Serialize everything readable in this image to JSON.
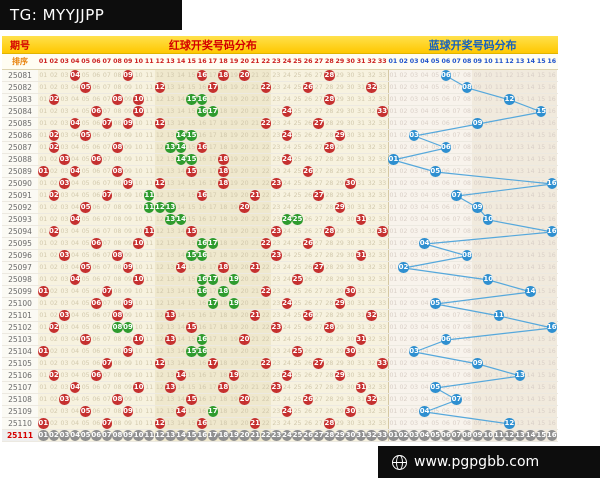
{
  "header": {
    "tg": "TG: MYYJJPP",
    "period_label": "期号",
    "sort_label": "排序",
    "red_title": "红球开奖号码分布",
    "blue_title": "蓝球开奖号码分布"
  },
  "footer": {
    "site": "www.pgpgbb.com"
  },
  "colors": {
    "red_ball": "#c5302f",
    "green_ball": "#2e9b2e",
    "blue_ball": "#2e8fd0",
    "blue_line": "#56a8dc",
    "pending_ball": "#8f8f8f",
    "header_yellow": "#ffd800",
    "red_text": "#d40000",
    "blue_text": "#1661bd"
  },
  "chart_data": {
    "type": "scatter",
    "title": "红球开奖号码分布 / 蓝球开奖号码分布",
    "red_columns_range": [
      1,
      33
    ],
    "blue_columns_range": [
      1,
      16
    ],
    "legend": [
      "red-ball",
      "green-ball",
      "blue-ball"
    ],
    "rows": [
      {
        "period": "25081",
        "reds": [
          4,
          9,
          16,
          18,
          20,
          28
        ],
        "greens": [],
        "blue": 6
      },
      {
        "period": "25082",
        "reds": [
          5,
          12,
          17,
          22,
          26,
          32
        ],
        "greens": [],
        "blue": 8
      },
      {
        "period": "25083",
        "reds": [
          2,
          8,
          10,
          15,
          16,
          28
        ],
        "greens": [
          15,
          16
        ],
        "blue": 12
      },
      {
        "period": "25084",
        "reds": [
          6,
          10,
          16,
          17,
          24,
          33
        ],
        "greens": [
          16,
          17
        ],
        "blue": 15
      },
      {
        "period": "25085",
        "reds": [
          4,
          7,
          9,
          12,
          22,
          27
        ],
        "greens": [],
        "blue": 9
      },
      {
        "period": "25086",
        "reds": [
          2,
          5,
          14,
          15,
          24,
          29
        ],
        "greens": [
          14,
          15
        ],
        "blue": 3
      },
      {
        "period": "25087",
        "reds": [
          2,
          8,
          13,
          14,
          16,
          28
        ],
        "greens": [
          13,
          14
        ],
        "blue": 6
      },
      {
        "period": "25088",
        "reds": [
          3,
          6,
          14,
          15,
          18,
          24
        ],
        "greens": [
          14,
          15
        ],
        "blue": 1
      },
      {
        "period": "25089",
        "reds": [
          1,
          4,
          8,
          15,
          18,
          26
        ],
        "greens": [],
        "blue": 5
      },
      {
        "period": "25090",
        "reds": [
          3,
          9,
          12,
          18,
          23,
          30
        ],
        "greens": [],
        "blue": 16
      },
      {
        "period": "25091",
        "reds": [
          2,
          7,
          11,
          16,
          21,
          27
        ],
        "greens": [
          11
        ],
        "blue": 7
      },
      {
        "period": "25092",
        "reds": [
          5,
          11,
          12,
          13,
          20,
          29
        ],
        "greens": [
          11,
          12,
          13
        ],
        "blue": 9
      },
      {
        "period": "25093",
        "reds": [
          4,
          13,
          14,
          24,
          25,
          31
        ],
        "greens": [
          13,
          14,
          24,
          25
        ],
        "blue": 10
      },
      {
        "period": "25094",
        "reds": [
          2,
          11,
          15,
          23,
          28,
          33
        ],
        "greens": [],
        "blue": 16
      },
      {
        "period": "25095",
        "reds": [
          6,
          10,
          16,
          17,
          22,
          26
        ],
        "greens": [
          16,
          17
        ],
        "blue": 4
      },
      {
        "period": "25096",
        "reds": [
          3,
          8,
          15,
          16,
          23,
          31
        ],
        "greens": [
          15,
          16
        ],
        "blue": 8
      },
      {
        "period": "25097",
        "reds": [
          5,
          9,
          14,
          18,
          21,
          27
        ],
        "greens": [],
        "blue": 2
      },
      {
        "period": "25098",
        "reds": [
          4,
          10,
          16,
          17,
          19,
          25
        ],
        "greens": [
          16,
          17,
          19
        ],
        "blue": 10
      },
      {
        "period": "25099",
        "reds": [
          1,
          7,
          16,
          18,
          22,
          30
        ],
        "greens": [
          16,
          18
        ],
        "blue": 14
      },
      {
        "period": "25100",
        "reds": [
          6,
          9,
          17,
          19,
          24,
          29
        ],
        "greens": [
          17,
          19
        ],
        "blue": 5
      },
      {
        "period": "25101",
        "reds": [
          3,
          8,
          13,
          21,
          26,
          32
        ],
        "greens": [],
        "blue": 11
      },
      {
        "period": "25102",
        "reds": [
          2,
          8,
          9,
          15,
          23,
          28
        ],
        "greens": [
          8,
          9
        ],
        "blue": 16
      },
      {
        "period": "25103",
        "reds": [
          5,
          10,
          13,
          16,
          20,
          31
        ],
        "greens": [
          16
        ],
        "blue": 6
      },
      {
        "period": "25104",
        "reds": [
          1,
          9,
          15,
          16,
          25,
          30
        ],
        "greens": [
          15,
          16
        ],
        "blue": 3
      },
      {
        "period": "25105",
        "reds": [
          7,
          12,
          17,
          22,
          27,
          33
        ],
        "greens": [],
        "blue": 9
      },
      {
        "period": "25106",
        "reds": [
          2,
          6,
          14,
          19,
          24,
          29
        ],
        "greens": [],
        "blue": 13
      },
      {
        "period": "25107",
        "reds": [
          4,
          10,
          13,
          18,
          23,
          31
        ],
        "greens": [],
        "blue": 5
      },
      {
        "period": "25108",
        "reds": [
          3,
          8,
          15,
          20,
          26,
          32
        ],
        "greens": [],
        "blue": 7
      },
      {
        "period": "25109",
        "reds": [
          5,
          9,
          14,
          17,
          24,
          30
        ],
        "greens": [
          17
        ],
        "blue": 4
      },
      {
        "period": "25110",
        "reds": [
          1,
          7,
          12,
          16,
          21,
          28
        ],
        "greens": [],
        "blue": 12
      },
      {
        "period": "25111",
        "pending": true
      }
    ]
  }
}
